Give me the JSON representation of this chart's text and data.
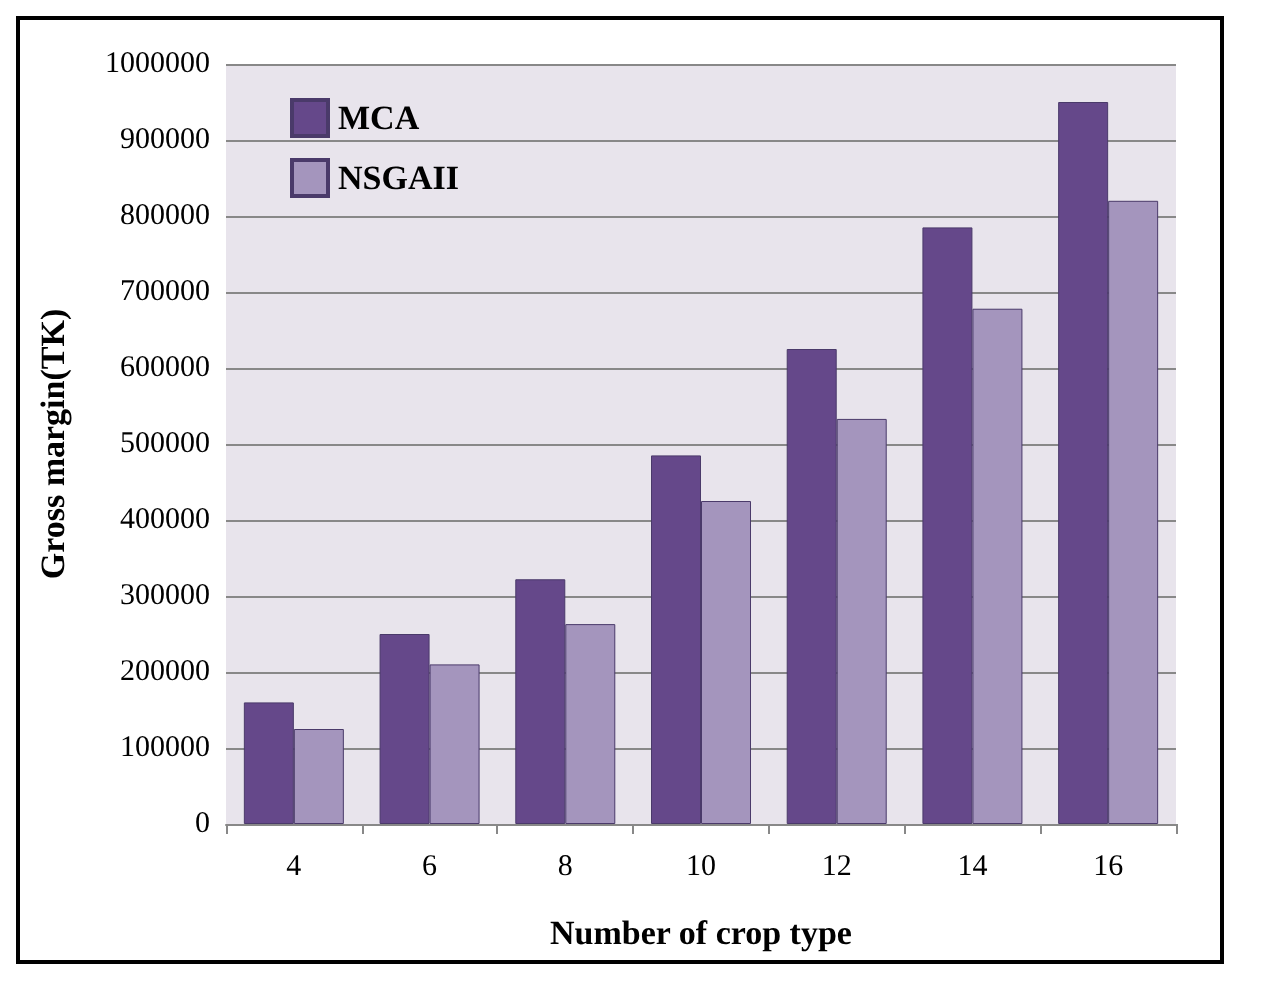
{
  "chart_data": {
    "type": "bar",
    "xlabel": "Number of crop type",
    "ylabel": "Gross margin(TK)",
    "categories": [
      "4",
      "6",
      "8",
      "10",
      "12",
      "14",
      "16"
    ],
    "series": [
      {
        "name": "MCA",
        "color": "#65488a",
        "values": [
          160000,
          250000,
          322000,
          485000,
          625000,
          785000,
          950000
        ]
      },
      {
        "name": "NSGAII",
        "color": "#a495bd",
        "values": [
          125000,
          210000,
          263000,
          425000,
          533000,
          678000,
          820000
        ]
      }
    ],
    "ylim": [
      0,
      1000000
    ],
    "yticks": [
      0,
      100000,
      200000,
      300000,
      400000,
      500000,
      600000,
      700000,
      800000,
      900000,
      1000000
    ],
    "grid": "y",
    "legend": "top left"
  }
}
